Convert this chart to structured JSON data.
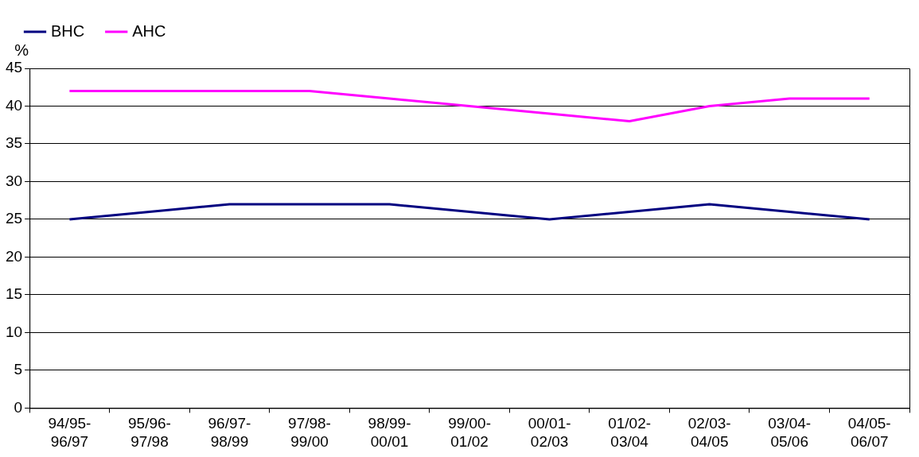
{
  "chart_data": {
    "type": "line",
    "ylabel": "%",
    "categories": [
      "94/95-96/97",
      "95/96-97/98",
      "96/97-98/99",
      "97/98-99/00",
      "98/99-00/01",
      "99/00-01/02",
      "00/01-02/03",
      "01/02-03/04",
      "02/03-04/05",
      "03/04-05/06",
      "04/05-06/07"
    ],
    "series": [
      {
        "name": "BHC",
        "color": "#000080",
        "values": [
          25,
          26,
          27,
          27,
          27,
          26,
          25,
          26,
          27,
          26,
          25
        ]
      },
      {
        "name": "AHC",
        "color": "#ff00ff",
        "values": [
          42,
          42,
          42,
          42,
          41,
          40,
          39,
          38,
          40,
          41,
          41
        ]
      }
    ],
    "ylim": [
      0,
      45
    ],
    "yticks": [
      0,
      5,
      10,
      15,
      20,
      25,
      30,
      35,
      40,
      45
    ],
    "grid": "y",
    "legend": "top left",
    "marker": "none",
    "line_style": "solid"
  }
}
